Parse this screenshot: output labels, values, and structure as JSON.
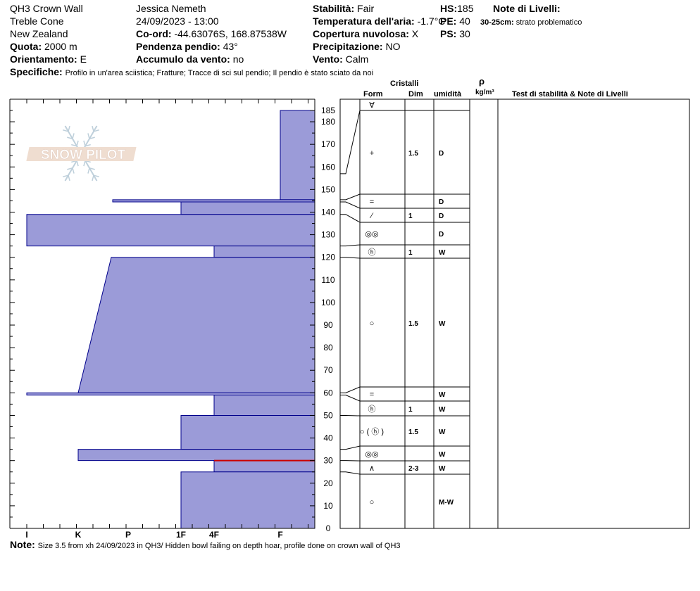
{
  "header": {
    "site": "QH3 Crown Wall",
    "area": "Treble Cone",
    "country": "New Zealand",
    "observer": "Jessica Nemeth",
    "datetime": "24/09/2023 - 13:00",
    "elevation_label": "Quota:",
    "elevation_value": "2000 m",
    "aspect_label": "Orientamento:",
    "aspect_value": "E",
    "coord_label": "Co-ord:",
    "coord_value": "-44.63076S, 168.87538W",
    "slope_label": "Pendenza pendio:",
    "slope_value": "43°",
    "wind_loading_label": "Accumulo da vento:",
    "wind_loading_value": "no",
    "stability_label": "Stabilità:",
    "stability_value": "Fair",
    "air_temp_label": "Temperatura dell'aria:",
    "air_temp_value": "-1.7°C",
    "cloud_label": "Copertura nuvolosa:",
    "cloud_value": "X",
    "precip_label": "Precipitazione:",
    "precip_value": "NO",
    "wind_label": "Vento:",
    "wind_value": "Calm",
    "hs_label": "HS:",
    "hs_value": "185",
    "pen_label": "PE:",
    "pen_value": "40",
    "ps_label": "PS:",
    "ps_value": "30",
    "notes_title": "Note di Livelli:",
    "notes_layer_range": "30-25cm:",
    "notes_layer_text": "strato problematico",
    "specifics_label": "Specifiche:",
    "specifics_value": "Profilo in un'area sciistica;  Fratture;  Tracce di sci sul pendio;  Il pendio è stato sciato da noi"
  },
  "footer": {
    "note_label": "Note:",
    "note_value": "Size 3.5 from xh 24/09/2023 in QH3/ Hidden bowl failing on depth hoar, profile done on crown wall of QH3"
  },
  "watermark": "SNOW PILOT",
  "table_headers": {
    "crystals": "Cristalli",
    "form": "Form",
    "size": "Dim",
    "moisture": "umidità",
    "rho": "ρ",
    "density_unit": "kg/m³",
    "tests": "Test di stabilità & Note di Livelli"
  },
  "colors": {
    "layer_fill": "#9b9bd8",
    "layer_stroke": "#00008b",
    "critical_line": "#cc0000",
    "grid": "#000000"
  },
  "chart_data": {
    "type": "bar",
    "title": "",
    "xlabel": "",
    "ylabel": "",
    "orientation": "horizontal",
    "hardness_scale": [
      "I",
      "K",
      "P",
      "1F",
      "4F",
      "F"
    ],
    "hardness_axis_note": "hardness increases leftward; F at right edge",
    "ylim": [
      0,
      185
    ],
    "y_ticks": [
      0,
      10,
      20,
      30,
      40,
      50,
      60,
      70,
      80,
      90,
      100,
      110,
      120,
      130,
      140,
      150,
      160,
      170,
      180,
      185
    ],
    "layers": [
      {
        "top": 185,
        "bottom": 145.5,
        "hardness": "F"
      },
      {
        "top": 145.5,
        "bottom": 144.5,
        "hardness": "P-"
      },
      {
        "top": 144.5,
        "bottom": 139,
        "hardness": "1F"
      },
      {
        "top": 139,
        "bottom": 125,
        "hardness": "I"
      },
      {
        "top": 125,
        "bottom": 120,
        "hardness": "4F"
      },
      {
        "top": 120,
        "bottom": 60,
        "hardness_top": "P-",
        "hardness_bottom": "K+"
      },
      {
        "top": 60,
        "bottom": 59,
        "hardness": "I"
      },
      {
        "top": 59,
        "bottom": 50,
        "hardness": "4F"
      },
      {
        "top": 50,
        "bottom": 35,
        "hardness": "1F"
      },
      {
        "top": 35,
        "bottom": 30,
        "hardness": "K"
      },
      {
        "top": 30,
        "bottom": 25,
        "hardness": "4F"
      },
      {
        "top": 25,
        "bottom": 0,
        "hardness": "1F"
      }
    ],
    "critical_depth": 30,
    "crystal_layers": [
      {
        "top": 185,
        "bottom": 185,
        "form": "∀",
        "size": "",
        "moisture": ""
      },
      {
        "top": 185,
        "bottom": 145,
        "form": "+",
        "size": "1.5",
        "moisture": "D"
      },
      {
        "top": 145,
        "bottom": 140,
        "form": "=",
        "size": "",
        "moisture": "D"
      },
      {
        "top": 140,
        "bottom": 135,
        "form": "⁄",
        "size": "1",
        "moisture": "D"
      },
      {
        "top": 135,
        "bottom": 125,
        "form": "◎◎",
        "size": "",
        "moisture": "D"
      },
      {
        "top": 125,
        "bottom": 120,
        "form": "ⓗ",
        "size": "1",
        "moisture": "W"
      },
      {
        "top": 120,
        "bottom": 63,
        "form": "○",
        "size": "1.5",
        "moisture": "W"
      },
      {
        "top": 63,
        "bottom": 57,
        "form": "=",
        "size": "",
        "moisture": "W"
      },
      {
        "top": 57,
        "bottom": 50,
        "form": "ⓗ",
        "size": "1",
        "moisture": "W"
      },
      {
        "top": 50,
        "bottom": 36,
        "form": "○ ( ⓗ )",
        "size": "1.5",
        "moisture": "W"
      },
      {
        "top": 36,
        "bottom": 30,
        "form": "◎◎",
        "size": "",
        "moisture": "W"
      },
      {
        "top": 30,
        "bottom": 24,
        "form": "∧",
        "size": "2-3",
        "moisture": "W"
      },
      {
        "top": 24,
        "bottom": 0,
        "form": "○",
        "size": "",
        "moisture": "M-W"
      }
    ]
  }
}
